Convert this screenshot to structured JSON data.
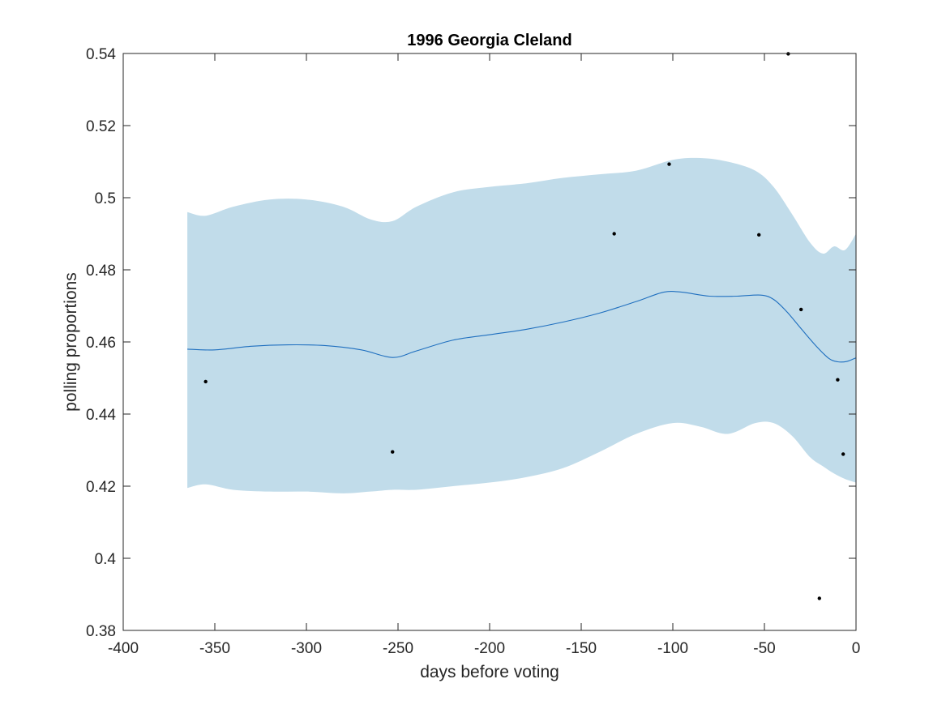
{
  "chart_data": {
    "type": "line",
    "title": "1996 Georgia Cleland",
    "xlabel": "days before voting",
    "ylabel": "polling proportions",
    "xlim": [
      -400,
      0
    ],
    "ylim": [
      0.38,
      0.54
    ],
    "xticks": [
      -400,
      -350,
      -300,
      -250,
      -200,
      -150,
      -100,
      -50,
      0
    ],
    "yticks": [
      0.38,
      0.4,
      0.42,
      0.44,
      0.46,
      0.48,
      0.5,
      0.52,
      0.54
    ],
    "xtick_labels": [
      "-400",
      "-350",
      "-300",
      "-250",
      "-200",
      "-150",
      "-100",
      "-50",
      "0"
    ],
    "ytick_labels": [
      "0.38",
      "0.4",
      "0.42",
      "0.44",
      "0.46",
      "0.48",
      "0.5",
      "0.52",
      "0.54"
    ],
    "grid": false,
    "band": {
      "color": "#c1dcea",
      "x": [
        -365,
        -355,
        -340,
        -320,
        -300,
        -280,
        -265,
        -253,
        -240,
        -220,
        -200,
        -180,
        -160,
        -140,
        -120,
        -100,
        -85,
        -70,
        -55,
        -45,
        -35,
        -25,
        -18,
        -12,
        -6,
        0
      ],
      "upper": [
        0.496,
        0.495,
        0.4975,
        0.4995,
        0.4995,
        0.4975,
        0.494,
        0.4935,
        0.4975,
        0.5015,
        0.503,
        0.504,
        0.5055,
        0.5065,
        0.5075,
        0.5105,
        0.511,
        0.51,
        0.5075,
        0.503,
        0.4955,
        0.4875,
        0.4845,
        0.4865,
        0.4855,
        0.49
      ],
      "lower": [
        0.4195,
        0.4205,
        0.419,
        0.4185,
        0.4185,
        0.418,
        0.4185,
        0.419,
        0.419,
        0.42,
        0.421,
        0.4225,
        0.425,
        0.4295,
        0.4345,
        0.4375,
        0.4365,
        0.4345,
        0.4375,
        0.4375,
        0.434,
        0.428,
        0.4255,
        0.4235,
        0.422,
        0.421
      ]
    },
    "series": [
      {
        "color": "#1f6fbf",
        "x": [
          -365,
          -350,
          -330,
          -310,
          -290,
          -270,
          -253,
          -240,
          -220,
          -200,
          -180,
          -160,
          -140,
          -120,
          -105,
          -95,
          -80,
          -65,
          -52,
          -45,
          -38,
          -30,
          -22,
          -15,
          -10,
          -5,
          0
        ],
        "y": [
          0.458,
          0.4578,
          0.4588,
          0.4592,
          0.459,
          0.4578,
          0.4557,
          0.4575,
          0.4605,
          0.462,
          0.4635,
          0.4655,
          0.468,
          0.4712,
          0.4738,
          0.4738,
          0.4727,
          0.4727,
          0.473,
          0.4718,
          0.4685,
          0.4637,
          0.459,
          0.4555,
          0.4545,
          0.4546,
          0.4556
        ]
      }
    ],
    "points": {
      "color": "#000000",
      "x": [
        -355,
        -253,
        -132,
        -102,
        -53,
        -37,
        -30,
        -20,
        -10,
        -7
      ],
      "y": [
        0.449,
        0.4295,
        0.49,
        0.5093,
        0.4897,
        0.5399,
        0.469,
        0.3889,
        0.4495,
        0.4289
      ]
    }
  }
}
